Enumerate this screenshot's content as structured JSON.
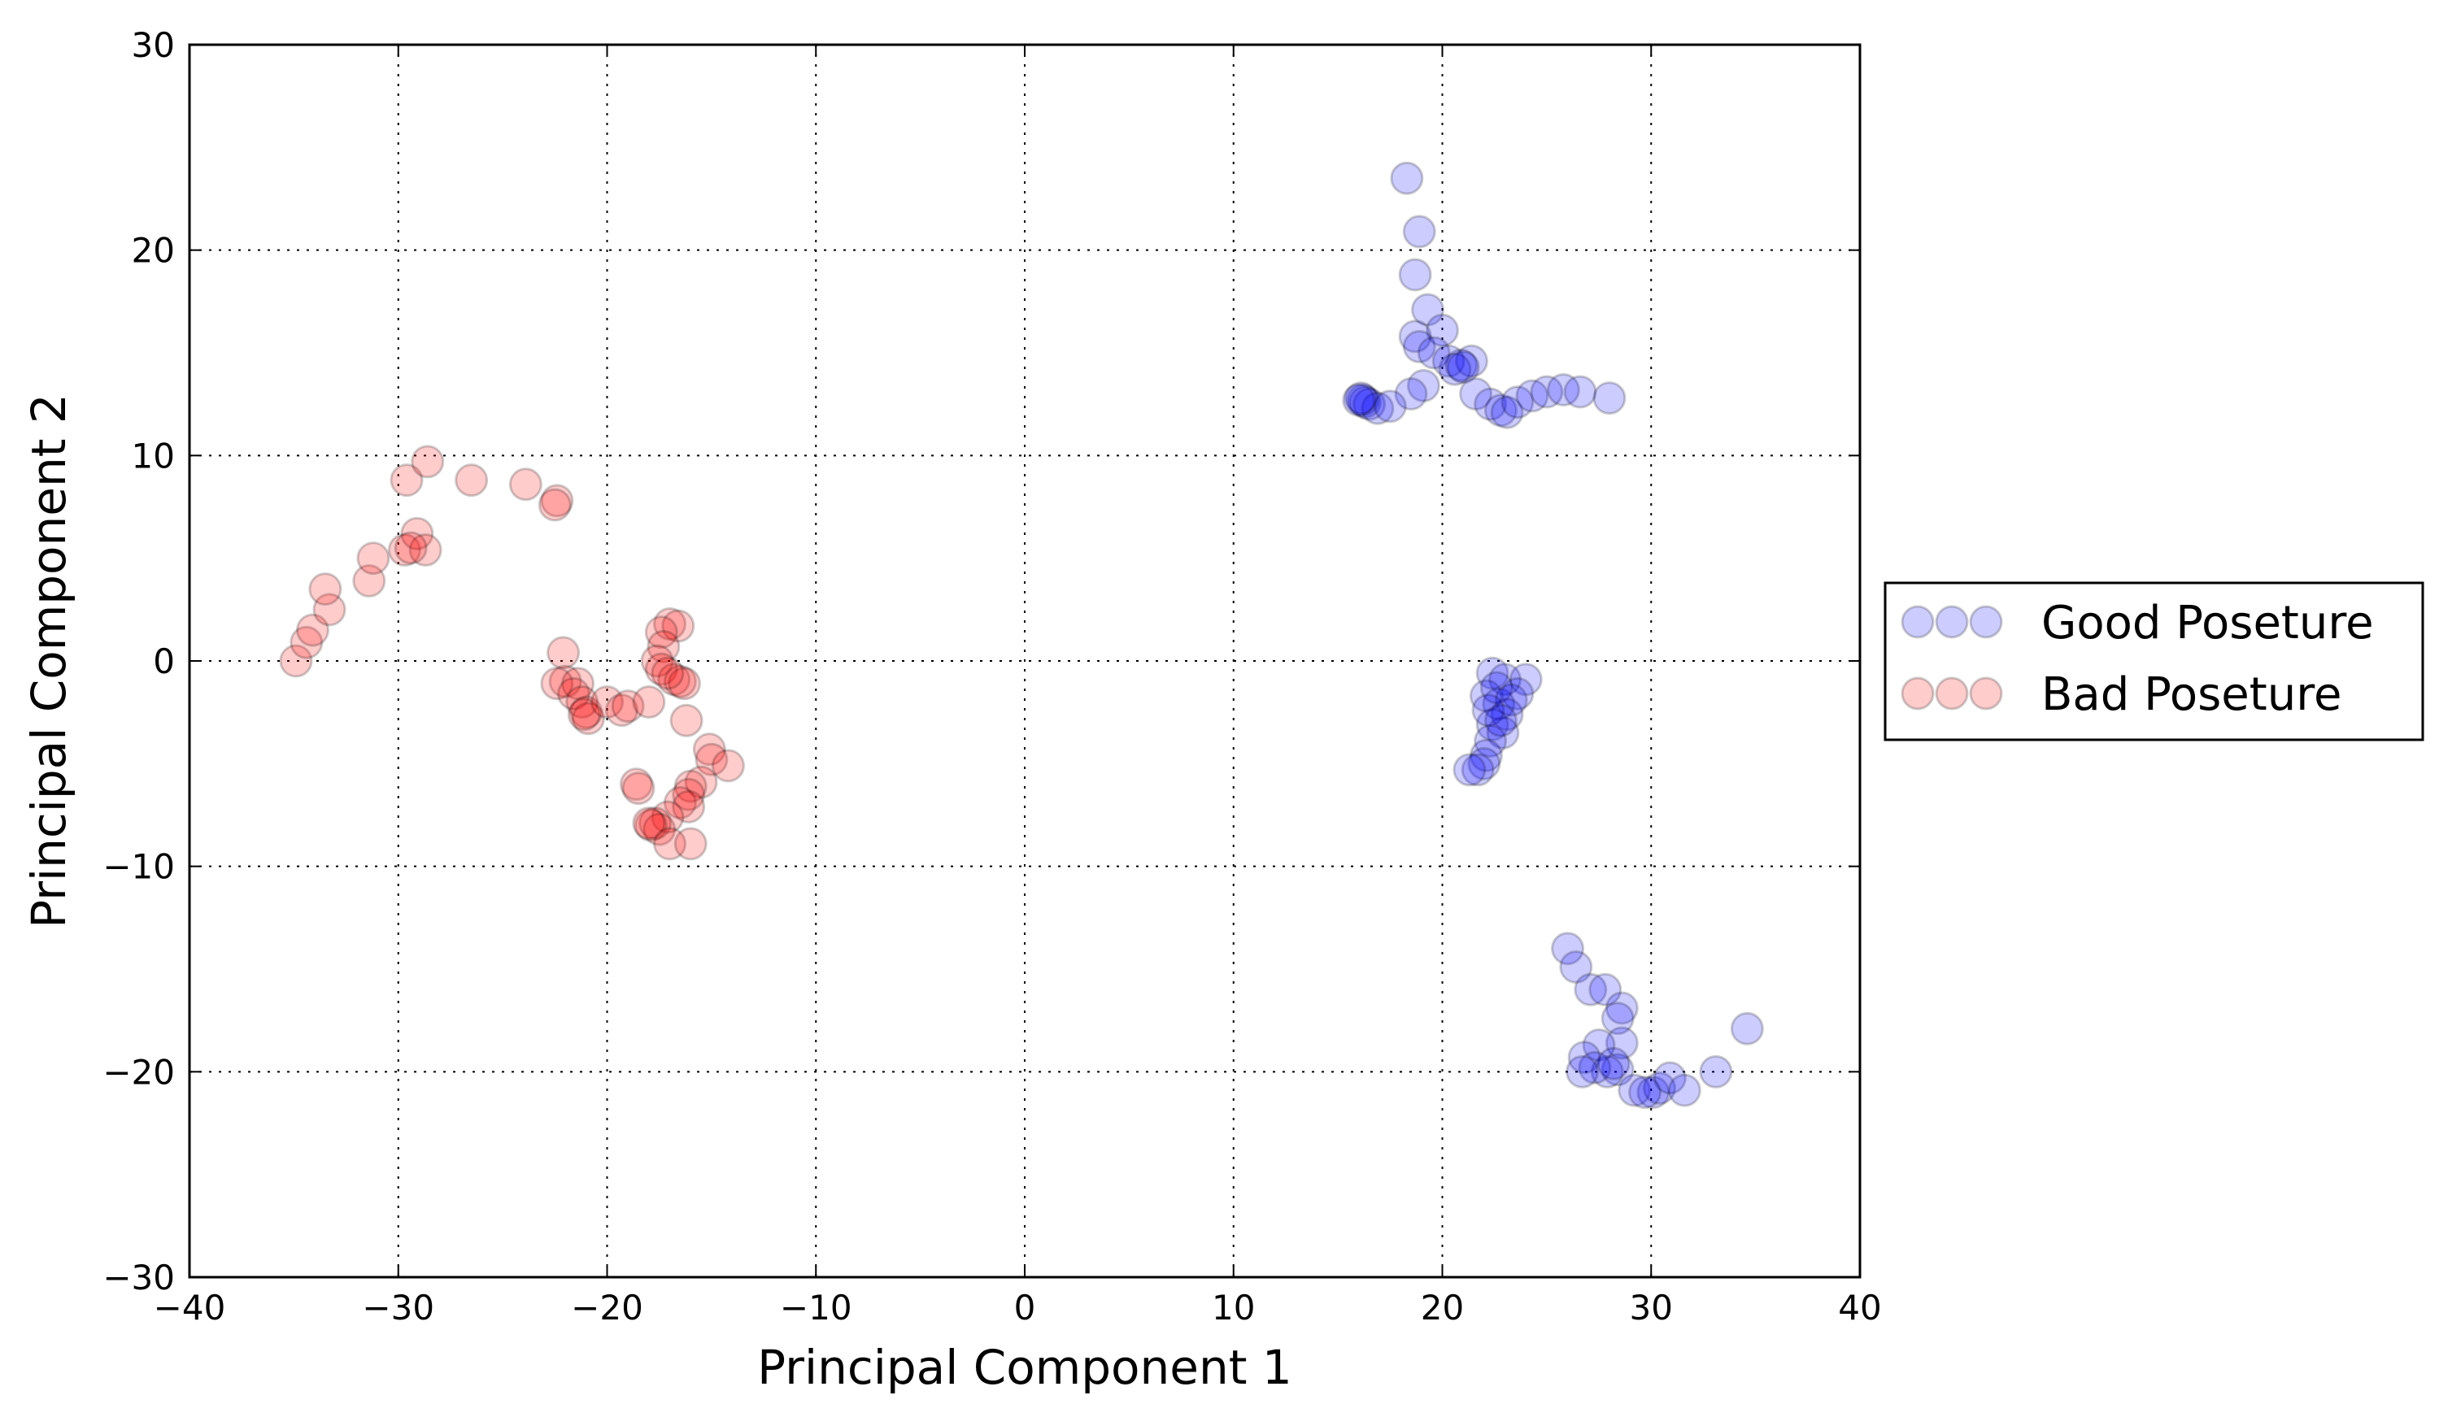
{
  "chart_data": {
    "type": "scatter",
    "xlabel": "Principal Component 1",
    "ylabel": "Principal Component 2",
    "xlim": [
      -40,
      40
    ],
    "ylim": [
      -30,
      30
    ],
    "xticks": [
      -40,
      -30,
      -20,
      -10,
      0,
      10,
      20,
      30,
      40
    ],
    "yticks": [
      -30,
      -20,
      -10,
      0,
      10,
      20,
      30
    ],
    "grid": true,
    "legend_placement": "outside-right",
    "series": [
      {
        "name": "Good Poseture",
        "color": "#0000ff",
        "points": [
          [
            18.3,
            23.5
          ],
          [
            18.9,
            20.9
          ],
          [
            18.7,
            18.8
          ],
          [
            19.3,
            17.1
          ],
          [
            20.0,
            16.1
          ],
          [
            18.7,
            15.8
          ],
          [
            18.9,
            15.3
          ],
          [
            19.6,
            15.0
          ],
          [
            20.3,
            14.6
          ],
          [
            20.9,
            14.4
          ],
          [
            21.4,
            14.6
          ],
          [
            20.6,
            14.2
          ],
          [
            21.0,
            14.3
          ],
          [
            19.1,
            13.4
          ],
          [
            18.5,
            13.0
          ],
          [
            21.6,
            13.0
          ],
          [
            22.3,
            12.5
          ],
          [
            22.8,
            12.2
          ],
          [
            23.1,
            12.1
          ],
          [
            23.6,
            12.6
          ],
          [
            24.3,
            12.9
          ],
          [
            25.0,
            13.1
          ],
          [
            25.8,
            13.2
          ],
          [
            26.6,
            13.1
          ],
          [
            28.0,
            12.8
          ],
          [
            16.2,
            12.7
          ],
          [
            16.3,
            12.6
          ],
          [
            16.5,
            12.5
          ],
          [
            16.9,
            12.3
          ],
          [
            17.5,
            12.4
          ],
          [
            16.1,
            12.8
          ],
          [
            16.0,
            12.7
          ],
          [
            22.4,
            -0.6
          ],
          [
            23.0,
            -0.9
          ],
          [
            24.0,
            -0.9
          ],
          [
            22.1,
            -1.7
          ],
          [
            23.6,
            -1.6
          ],
          [
            22.7,
            -2.1
          ],
          [
            23.1,
            -2.6
          ],
          [
            22.4,
            -3.1
          ],
          [
            22.9,
            -3.5
          ],
          [
            22.3,
            -3.9
          ],
          [
            22.1,
            -4.6
          ],
          [
            22.0,
            -5.0
          ],
          [
            21.7,
            -5.3
          ],
          [
            21.3,
            -5.3
          ],
          [
            22.6,
            -1.3
          ],
          [
            23.3,
            -1.9
          ],
          [
            22.2,
            -2.4
          ],
          [
            22.8,
            -2.9
          ],
          [
            26.0,
            -14.0
          ],
          [
            26.4,
            -14.9
          ],
          [
            27.1,
            -16.0
          ],
          [
            27.8,
            -16.0
          ],
          [
            28.6,
            -16.9
          ],
          [
            28.4,
            -17.4
          ],
          [
            28.6,
            -18.6
          ],
          [
            27.5,
            -18.7
          ],
          [
            26.8,
            -19.3
          ],
          [
            28.4,
            -19.9
          ],
          [
            27.9,
            -20.0
          ],
          [
            27.3,
            -19.8
          ],
          [
            26.7,
            -20.0
          ],
          [
            29.2,
            -20.9
          ],
          [
            30.1,
            -21.0
          ],
          [
            30.4,
            -20.8
          ],
          [
            30.9,
            -20.3
          ],
          [
            31.6,
            -20.9
          ],
          [
            33.1,
            -20.0
          ],
          [
            34.6,
            -17.9
          ],
          [
            28.2,
            -19.6
          ],
          [
            29.7,
            -21.0
          ]
        ]
      },
      {
        "name": "Bad Poseture",
        "color": "#ff0000",
        "points": [
          [
            -34.9,
            0.0
          ],
          [
            -34.4,
            0.9
          ],
          [
            -34.1,
            1.5
          ],
          [
            -33.3,
            2.5
          ],
          [
            -33.5,
            3.5
          ],
          [
            -31.4,
            3.9
          ],
          [
            -31.2,
            5.0
          ],
          [
            -29.7,
            5.4
          ],
          [
            -29.1,
            6.2
          ],
          [
            -28.7,
            5.4
          ],
          [
            -29.4,
            5.5
          ],
          [
            -29.6,
            8.8
          ],
          [
            -28.6,
            9.7
          ],
          [
            -26.5,
            8.8
          ],
          [
            -23.9,
            8.6
          ],
          [
            -22.4,
            7.8
          ],
          [
            -22.5,
            7.6
          ],
          [
            -22.1,
            0.4
          ],
          [
            -22.0,
            -1.0
          ],
          [
            -22.4,
            -1.1
          ],
          [
            -21.4,
            -1.1
          ],
          [
            -21.6,
            -1.6
          ],
          [
            -21.2,
            -2.0
          ],
          [
            -21.0,
            -2.5
          ],
          [
            -20.9,
            -2.8
          ],
          [
            -21.1,
            -2.6
          ],
          [
            -20.0,
            -2.0
          ],
          [
            -19.3,
            -2.4
          ],
          [
            -19.0,
            -2.2
          ],
          [
            -18.0,
            -2.0
          ],
          [
            -17.0,
            1.8
          ],
          [
            -16.6,
            1.7
          ],
          [
            -17.4,
            1.4
          ],
          [
            -17.3,
            0.7
          ],
          [
            -17.6,
            0.0
          ],
          [
            -17.4,
            -0.4
          ],
          [
            -16.8,
            -0.9
          ],
          [
            -16.5,
            -1.0
          ],
          [
            -16.3,
            -1.1
          ],
          [
            -17.1,
            -0.6
          ],
          [
            -16.2,
            -2.9
          ],
          [
            -15.1,
            -4.3
          ],
          [
            -15.0,
            -4.8
          ],
          [
            -14.2,
            -5.1
          ],
          [
            -15.5,
            -5.9
          ],
          [
            -16.0,
            -6.1
          ],
          [
            -16.1,
            -6.5
          ],
          [
            -16.5,
            -6.9
          ],
          [
            -16.1,
            -7.1
          ],
          [
            -17.1,
            -7.6
          ],
          [
            -18.6,
            -6.0
          ],
          [
            -18.5,
            -6.2
          ],
          [
            -17.7,
            -7.9
          ],
          [
            -17.9,
            -8.0
          ],
          [
            -17.5,
            -8.2
          ],
          [
            -17.0,
            -8.9
          ],
          [
            -16.0,
            -8.9
          ],
          [
            -18.0,
            -7.9
          ]
        ]
      }
    ]
  }
}
